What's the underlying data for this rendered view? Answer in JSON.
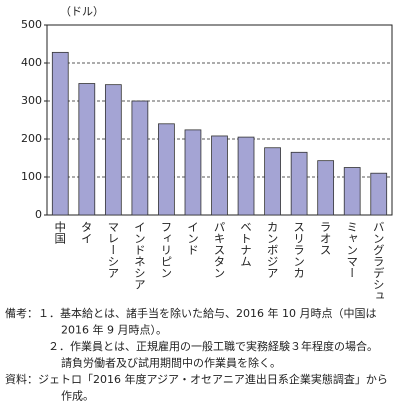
{
  "chart_data": {
    "type": "bar",
    "y_label": "（ドル）",
    "categories": [
      "中国",
      "タイ",
      "マレーシア",
      "インドネシア",
      "フィリピン",
      "インド",
      "パキスタン",
      "ベトナム",
      "カンボジア",
      "スリランカ",
      "ラオス",
      "ミャンマー",
      "バングラデシュ"
    ],
    "values": [
      428,
      346,
      343,
      300,
      240,
      224,
      208,
      205,
      177,
      165,
      143,
      125,
      110
    ],
    "color": "#a4a4d4",
    "ylim": [
      0,
      500
    ],
    "yticks": [
      0,
      100,
      200,
      300,
      400,
      500
    ],
    "grid": true,
    "notes": [
      "備考：１．基本給とは、諸手当を除いた給与、2016 年 10 月時点（中国は",
      "2016 年 9 月時点）。",
      "２．作業員とは、正規雇用の一般工職で実務経験３年程度の場合。",
      "請負労働者及び試用期間中の作業員を除く。",
      "資料：ジェトロ「2016 年度アジア・オセアニア進出日系企業実態調査」から",
      "作成。"
    ]
  }
}
